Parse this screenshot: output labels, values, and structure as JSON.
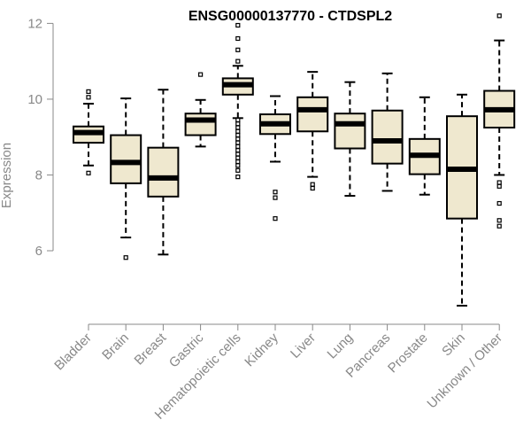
{
  "chart_data": {
    "type": "box",
    "title": "ENSG00000137770 - CTDSPL2",
    "ylabel": "Expression",
    "xlabel": "",
    "ylim": [
      4.2,
      12.5
    ],
    "yticks": [
      6,
      8,
      10,
      12
    ],
    "grid": false,
    "box_fill": "#efe8cf",
    "categories": [
      "Bladder",
      "Brain",
      "Breast",
      "Gastric",
      "Hematopoietic cells",
      "Kidney",
      "Liver",
      "Lung",
      "Pancreas",
      "Prostate",
      "Skin",
      "Unknown / Other"
    ],
    "boxes": [
      {
        "whisker_low": 8.25,
        "q1": 8.85,
        "median": 9.12,
        "q3": 9.28,
        "whisker_high": 9.88,
        "outliers": [
          8.05,
          10.05,
          10.2
        ]
      },
      {
        "whisker_low": 6.35,
        "q1": 7.78,
        "median": 8.33,
        "q3": 9.05,
        "whisker_high": 10.02,
        "outliers": [
          5.82
        ]
      },
      {
        "whisker_low": 5.9,
        "q1": 7.43,
        "median": 7.92,
        "q3": 8.72,
        "whisker_high": 10.25,
        "outliers": []
      },
      {
        "whisker_low": 8.75,
        "q1": 9.05,
        "median": 9.45,
        "q3": 9.62,
        "whisker_high": 9.98,
        "outliers": [
          10.65
        ]
      },
      {
        "whisker_low": 9.5,
        "q1": 10.12,
        "median": 10.38,
        "q3": 10.55,
        "whisker_high": 10.88,
        "outliers": [
          11.0,
          11.3,
          11.6,
          11.95,
          9.45,
          9.35,
          9.25,
          9.15,
          9.05,
          8.95,
          8.85,
          8.75,
          8.65,
          8.55,
          8.45,
          8.35,
          8.25,
          8.12,
          7.95
        ]
      },
      {
        "whisker_low": 8.35,
        "q1": 9.08,
        "median": 9.35,
        "q3": 9.6,
        "whisker_high": 10.08,
        "outliers": [
          7.55,
          7.4,
          6.85
        ]
      },
      {
        "whisker_low": 7.95,
        "q1": 9.15,
        "median": 9.72,
        "q3": 10.05,
        "whisker_high": 10.72,
        "outliers": [
          7.75,
          7.65
        ]
      },
      {
        "whisker_low": 7.45,
        "q1": 8.7,
        "median": 9.35,
        "q3": 9.62,
        "whisker_high": 10.45,
        "outliers": []
      },
      {
        "whisker_low": 7.58,
        "q1": 8.3,
        "median": 8.9,
        "q3": 9.7,
        "whisker_high": 10.68,
        "outliers": []
      },
      {
        "whisker_low": 7.48,
        "q1": 8.02,
        "median": 8.52,
        "q3": 8.95,
        "whisker_high": 10.05,
        "outliers": []
      },
      {
        "whisker_low": 4.55,
        "q1": 6.85,
        "median": 8.15,
        "q3": 9.55,
        "whisker_high": 10.12,
        "outliers": []
      },
      {
        "whisker_low": 8.0,
        "q1": 9.25,
        "median": 9.72,
        "q3": 10.22,
        "whisker_high": 11.55,
        "outliers": [
          12.2,
          7.8,
          7.7,
          7.25,
          6.8,
          6.65
        ]
      }
    ]
  }
}
